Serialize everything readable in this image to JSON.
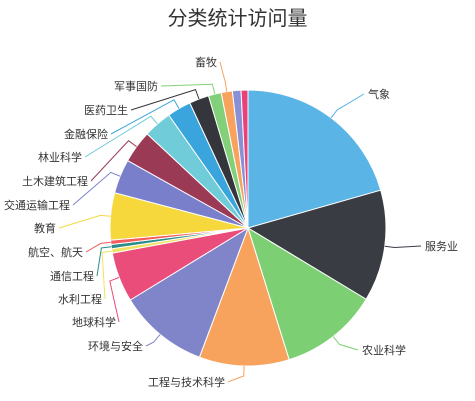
{
  "chart_data": {
    "type": "pie",
    "title": "分类统计访问量",
    "label_color": "#333333",
    "slices": [
      {
        "name": "气象",
        "value": 20.5,
        "color": "#5ab4e6"
      },
      {
        "name": "服务业",
        "value": 13.0,
        "color": "#3a3c44"
      },
      {
        "name": "农业科学",
        "value": 11.5,
        "color": "#7dcf74"
      },
      {
        "name": "工程与技术科学",
        "value": 10.5,
        "color": "#f7a35e"
      },
      {
        "name": "环境与安全",
        "value": 10.5,
        "color": "#8085c9"
      },
      {
        "name": "地球科学",
        "value": 5.8,
        "color": "#ea4d7a"
      },
      {
        "name": "水利工程",
        "value": 0.5,
        "color": "#f0e25f"
      },
      {
        "name": "通信工程",
        "value": 0.5,
        "color": "#2b8d8a"
      },
      {
        "name": "航空、航天",
        "value": 0.5,
        "color": "#f25c5c"
      },
      {
        "name": "教育",
        "value": 5.5,
        "color": "#f6d83d"
      },
      {
        "name": "交通运输工程",
        "value": 4.0,
        "color": "#7a7fcc"
      },
      {
        "name": "土木建筑工程",
        "value": 3.8,
        "color": "#9b3a55"
      },
      {
        "name": "林业科学",
        "value": 3.3,
        "color": "#6fccd8"
      },
      {
        "name": "金融保险",
        "value": 2.8,
        "color": "#3aa5dd"
      },
      {
        "name": "医药卫生",
        "value": 2.3,
        "color": "#34363c"
      },
      {
        "name": "军事国防",
        "value": 1.5,
        "color": "#83d07a"
      },
      {
        "name": "畜牧",
        "value": 1.3,
        "color": "#f7a35e"
      },
      {
        "name": "",
        "value": 1.0,
        "color": "#8a8fd6"
      },
      {
        "name": "",
        "value": 0.8,
        "color": "#e8427a"
      }
    ]
  }
}
